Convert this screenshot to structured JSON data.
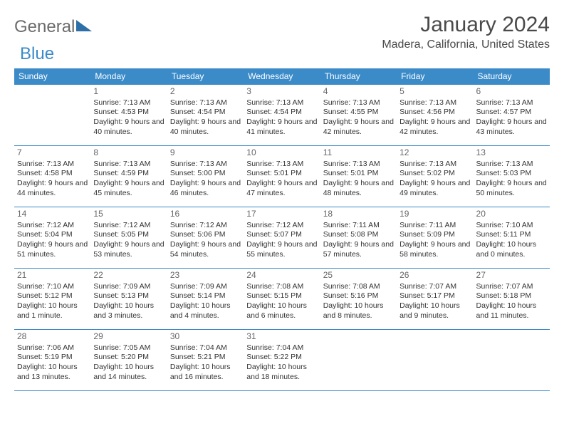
{
  "brand": {
    "part1": "General",
    "part2": "Blue"
  },
  "title": "January 2024",
  "location": "Madera, California, United States",
  "colors": {
    "header_bg": "#3b8bc9",
    "header_fg": "#ffffff",
    "cell_border": "#3b8bc9",
    "text": "#333333",
    "daynum": "#666666",
    "logo_gray": "#6b6b6b",
    "logo_blue": "#3b8bc9"
  },
  "day_headers": [
    "Sunday",
    "Monday",
    "Tuesday",
    "Wednesday",
    "Thursday",
    "Friday",
    "Saturday"
  ],
  "weeks": [
    [
      {
        "n": "",
        "sr": "",
        "ss": "",
        "dl": ""
      },
      {
        "n": "1",
        "sr": "Sunrise: 7:13 AM",
        "ss": "Sunset: 4:53 PM",
        "dl": "Daylight: 9 hours and 40 minutes."
      },
      {
        "n": "2",
        "sr": "Sunrise: 7:13 AM",
        "ss": "Sunset: 4:54 PM",
        "dl": "Daylight: 9 hours and 40 minutes."
      },
      {
        "n": "3",
        "sr": "Sunrise: 7:13 AM",
        "ss": "Sunset: 4:54 PM",
        "dl": "Daylight: 9 hours and 41 minutes."
      },
      {
        "n": "4",
        "sr": "Sunrise: 7:13 AM",
        "ss": "Sunset: 4:55 PM",
        "dl": "Daylight: 9 hours and 42 minutes."
      },
      {
        "n": "5",
        "sr": "Sunrise: 7:13 AM",
        "ss": "Sunset: 4:56 PM",
        "dl": "Daylight: 9 hours and 42 minutes."
      },
      {
        "n": "6",
        "sr": "Sunrise: 7:13 AM",
        "ss": "Sunset: 4:57 PM",
        "dl": "Daylight: 9 hours and 43 minutes."
      }
    ],
    [
      {
        "n": "7",
        "sr": "Sunrise: 7:13 AM",
        "ss": "Sunset: 4:58 PM",
        "dl": "Daylight: 9 hours and 44 minutes."
      },
      {
        "n": "8",
        "sr": "Sunrise: 7:13 AM",
        "ss": "Sunset: 4:59 PM",
        "dl": "Daylight: 9 hours and 45 minutes."
      },
      {
        "n": "9",
        "sr": "Sunrise: 7:13 AM",
        "ss": "Sunset: 5:00 PM",
        "dl": "Daylight: 9 hours and 46 minutes."
      },
      {
        "n": "10",
        "sr": "Sunrise: 7:13 AM",
        "ss": "Sunset: 5:01 PM",
        "dl": "Daylight: 9 hours and 47 minutes."
      },
      {
        "n": "11",
        "sr": "Sunrise: 7:13 AM",
        "ss": "Sunset: 5:01 PM",
        "dl": "Daylight: 9 hours and 48 minutes."
      },
      {
        "n": "12",
        "sr": "Sunrise: 7:13 AM",
        "ss": "Sunset: 5:02 PM",
        "dl": "Daylight: 9 hours and 49 minutes."
      },
      {
        "n": "13",
        "sr": "Sunrise: 7:13 AM",
        "ss": "Sunset: 5:03 PM",
        "dl": "Daylight: 9 hours and 50 minutes."
      }
    ],
    [
      {
        "n": "14",
        "sr": "Sunrise: 7:12 AM",
        "ss": "Sunset: 5:04 PM",
        "dl": "Daylight: 9 hours and 51 minutes."
      },
      {
        "n": "15",
        "sr": "Sunrise: 7:12 AM",
        "ss": "Sunset: 5:05 PM",
        "dl": "Daylight: 9 hours and 53 minutes."
      },
      {
        "n": "16",
        "sr": "Sunrise: 7:12 AM",
        "ss": "Sunset: 5:06 PM",
        "dl": "Daylight: 9 hours and 54 minutes."
      },
      {
        "n": "17",
        "sr": "Sunrise: 7:12 AM",
        "ss": "Sunset: 5:07 PM",
        "dl": "Daylight: 9 hours and 55 minutes."
      },
      {
        "n": "18",
        "sr": "Sunrise: 7:11 AM",
        "ss": "Sunset: 5:08 PM",
        "dl": "Daylight: 9 hours and 57 minutes."
      },
      {
        "n": "19",
        "sr": "Sunrise: 7:11 AM",
        "ss": "Sunset: 5:09 PM",
        "dl": "Daylight: 9 hours and 58 minutes."
      },
      {
        "n": "20",
        "sr": "Sunrise: 7:10 AM",
        "ss": "Sunset: 5:11 PM",
        "dl": "Daylight: 10 hours and 0 minutes."
      }
    ],
    [
      {
        "n": "21",
        "sr": "Sunrise: 7:10 AM",
        "ss": "Sunset: 5:12 PM",
        "dl": "Daylight: 10 hours and 1 minute."
      },
      {
        "n": "22",
        "sr": "Sunrise: 7:09 AM",
        "ss": "Sunset: 5:13 PM",
        "dl": "Daylight: 10 hours and 3 minutes."
      },
      {
        "n": "23",
        "sr": "Sunrise: 7:09 AM",
        "ss": "Sunset: 5:14 PM",
        "dl": "Daylight: 10 hours and 4 minutes."
      },
      {
        "n": "24",
        "sr": "Sunrise: 7:08 AM",
        "ss": "Sunset: 5:15 PM",
        "dl": "Daylight: 10 hours and 6 minutes."
      },
      {
        "n": "25",
        "sr": "Sunrise: 7:08 AM",
        "ss": "Sunset: 5:16 PM",
        "dl": "Daylight: 10 hours and 8 minutes."
      },
      {
        "n": "26",
        "sr": "Sunrise: 7:07 AM",
        "ss": "Sunset: 5:17 PM",
        "dl": "Daylight: 10 hours and 9 minutes."
      },
      {
        "n": "27",
        "sr": "Sunrise: 7:07 AM",
        "ss": "Sunset: 5:18 PM",
        "dl": "Daylight: 10 hours and 11 minutes."
      }
    ],
    [
      {
        "n": "28",
        "sr": "Sunrise: 7:06 AM",
        "ss": "Sunset: 5:19 PM",
        "dl": "Daylight: 10 hours and 13 minutes."
      },
      {
        "n": "29",
        "sr": "Sunrise: 7:05 AM",
        "ss": "Sunset: 5:20 PM",
        "dl": "Daylight: 10 hours and 14 minutes."
      },
      {
        "n": "30",
        "sr": "Sunrise: 7:04 AM",
        "ss": "Sunset: 5:21 PM",
        "dl": "Daylight: 10 hours and 16 minutes."
      },
      {
        "n": "31",
        "sr": "Sunrise: 7:04 AM",
        "ss": "Sunset: 5:22 PM",
        "dl": "Daylight: 10 hours and 18 minutes."
      },
      {
        "n": "",
        "sr": "",
        "ss": "",
        "dl": ""
      },
      {
        "n": "",
        "sr": "",
        "ss": "",
        "dl": ""
      },
      {
        "n": "",
        "sr": "",
        "ss": "",
        "dl": ""
      }
    ]
  ]
}
